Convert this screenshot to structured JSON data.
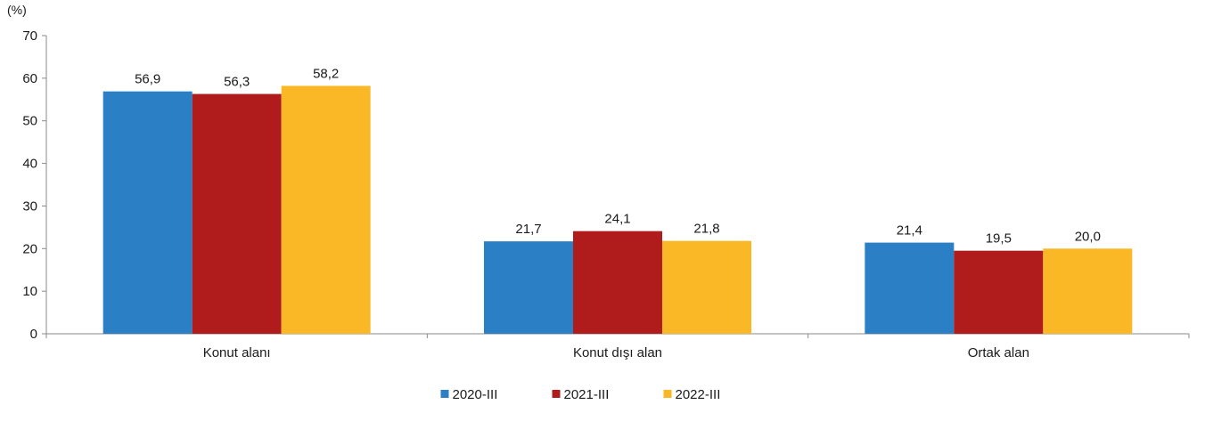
{
  "chart_data": {
    "type": "bar",
    "unit_label": "(%)",
    "categories": [
      "Konut alanı",
      "Konut dışı alan",
      "Ortak alan"
    ],
    "series": [
      {
        "name": "2020-III",
        "color": "#2b7fc5",
        "values": [
          56.9,
          21.7,
          21.4
        ],
        "labels": [
          "56,9",
          "21,7",
          "21,4"
        ]
      },
      {
        "name": "2021-III",
        "color": "#b01c1c",
        "values": [
          56.3,
          24.1,
          19.5
        ],
        "labels": [
          "56,3",
          "24,1",
          "19,5"
        ]
      },
      {
        "name": "2022-III",
        "color": "#fbb826",
        "values": [
          58.2,
          21.8,
          20.0
        ],
        "labels": [
          "58,2",
          "21,8",
          "20,0"
        ]
      }
    ],
    "ylim": [
      0,
      70
    ],
    "yticks": [
      0,
      10,
      20,
      30,
      40,
      50,
      60,
      70
    ],
    "grid": false,
    "legend_position": "bottom"
  }
}
